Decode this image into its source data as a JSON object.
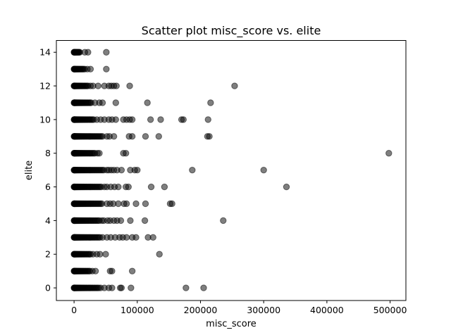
{
  "chart_data": {
    "type": "scatter",
    "title": "Scatter plot misc_score vs. elite",
    "xlabel": "misc_score",
    "ylabel": "elite",
    "xlim": [
      -28000,
      525000
    ],
    "ylim": [
      -0.75,
      14.7
    ],
    "xticks": [
      0,
      100000,
      200000,
      300000,
      400000,
      500000
    ],
    "xtick_labels": [
      "0",
      "100000",
      "200000",
      "300000",
      "400000",
      "500000"
    ],
    "yticks": [
      0,
      2,
      4,
      6,
      8,
      10,
      12,
      14
    ],
    "ytick_labels": [
      "0",
      "2",
      "4",
      "6",
      "8",
      "10",
      "12",
      "14"
    ],
    "grid": false,
    "marker_color": "#000000",
    "marker_alpha": 0.5,
    "dense_rows": [
      {
        "y": 0,
        "x_max": 39000
      },
      {
        "y": 1,
        "x_max": 25000
      },
      {
        "y": 2,
        "x_max": 26000
      },
      {
        "y": 3,
        "x_max": 41000
      },
      {
        "y": 4,
        "x_max": 40000
      },
      {
        "y": 5,
        "x_max": 44000
      },
      {
        "y": 6,
        "x_max": 43000
      },
      {
        "y": 7,
        "x_max": 47000
      },
      {
        "y": 8,
        "x_max": 33000
      },
      {
        "y": 9,
        "x_max": 45000
      },
      {
        "y": 10,
        "x_max": 31000
      },
      {
        "y": 11,
        "x_max": 27000
      },
      {
        "y": 12,
        "x_max": 22000
      },
      {
        "y": 13,
        "x_max": 15000
      },
      {
        "y": 14,
        "x_max": 9000
      }
    ],
    "points": [
      {
        "x": 17000,
        "y": 14
      },
      {
        "x": 22000,
        "y": 14
      },
      {
        "x": 51000,
        "y": 14
      },
      {
        "x": 17000,
        "y": 13
      },
      {
        "x": 21000,
        "y": 13
      },
      {
        "x": 26000,
        "y": 13
      },
      {
        "x": 51000,
        "y": 13
      },
      {
        "x": 26000,
        "y": 12
      },
      {
        "x": 30000,
        "y": 12
      },
      {
        "x": 38000,
        "y": 12
      },
      {
        "x": 48000,
        "y": 12
      },
      {
        "x": 55000,
        "y": 12
      },
      {
        "x": 59000,
        "y": 12
      },
      {
        "x": 63000,
        "y": 12
      },
      {
        "x": 67000,
        "y": 12
      },
      {
        "x": 88000,
        "y": 12
      },
      {
        "x": 254000,
        "y": 12
      },
      {
        "x": 33000,
        "y": 11
      },
      {
        "x": 40000,
        "y": 11
      },
      {
        "x": 45000,
        "y": 11
      },
      {
        "x": 66000,
        "y": 11
      },
      {
        "x": 116000,
        "y": 11
      },
      {
        "x": 216000,
        "y": 11
      },
      {
        "x": 36000,
        "y": 10
      },
      {
        "x": 42000,
        "y": 10
      },
      {
        "x": 48000,
        "y": 10
      },
      {
        "x": 55000,
        "y": 10
      },
      {
        "x": 60000,
        "y": 10
      },
      {
        "x": 66000,
        "y": 10
      },
      {
        "x": 78000,
        "y": 10
      },
      {
        "x": 83000,
        "y": 10
      },
      {
        "x": 88000,
        "y": 10
      },
      {
        "x": 92000,
        "y": 10
      },
      {
        "x": 121000,
        "y": 10
      },
      {
        "x": 137000,
        "y": 10
      },
      {
        "x": 170000,
        "y": 10
      },
      {
        "x": 173000,
        "y": 10
      },
      {
        "x": 212000,
        "y": 10
      },
      {
        "x": 52000,
        "y": 9
      },
      {
        "x": 56000,
        "y": 9
      },
      {
        "x": 63000,
        "y": 9
      },
      {
        "x": 87000,
        "y": 9
      },
      {
        "x": 92000,
        "y": 9
      },
      {
        "x": 113000,
        "y": 9
      },
      {
        "x": 134000,
        "y": 9
      },
      {
        "x": 211000,
        "y": 9
      },
      {
        "x": 214000,
        "y": 9
      },
      {
        "x": 37000,
        "y": 8
      },
      {
        "x": 40000,
        "y": 8
      },
      {
        "x": 78000,
        "y": 8
      },
      {
        "x": 82000,
        "y": 8
      },
      {
        "x": 498000,
        "y": 8
      },
      {
        "x": 52000,
        "y": 7
      },
      {
        "x": 55000,
        "y": 7
      },
      {
        "x": 59000,
        "y": 7
      },
      {
        "x": 63000,
        "y": 7
      },
      {
        "x": 68000,
        "y": 7
      },
      {
        "x": 75000,
        "y": 7
      },
      {
        "x": 89000,
        "y": 7
      },
      {
        "x": 96000,
        "y": 7
      },
      {
        "x": 100000,
        "y": 7
      },
      {
        "x": 187000,
        "y": 7
      },
      {
        "x": 300000,
        "y": 7
      },
      {
        "x": 48000,
        "y": 6
      },
      {
        "x": 52000,
        "y": 6
      },
      {
        "x": 58000,
        "y": 6
      },
      {
        "x": 64000,
        "y": 6
      },
      {
        "x": 70000,
        "y": 6
      },
      {
        "x": 82000,
        "y": 6
      },
      {
        "x": 86000,
        "y": 6
      },
      {
        "x": 122000,
        "y": 6
      },
      {
        "x": 143000,
        "y": 6
      },
      {
        "x": 336000,
        "y": 6
      },
      {
        "x": 52000,
        "y": 5
      },
      {
        "x": 57000,
        "y": 5
      },
      {
        "x": 62000,
        "y": 5
      },
      {
        "x": 70000,
        "y": 5
      },
      {
        "x": 79000,
        "y": 5
      },
      {
        "x": 83000,
        "y": 5
      },
      {
        "x": 98000,
        "y": 5
      },
      {
        "x": 113000,
        "y": 5
      },
      {
        "x": 152000,
        "y": 5
      },
      {
        "x": 155000,
        "y": 5
      },
      {
        "x": 44000,
        "y": 4
      },
      {
        "x": 47000,
        "y": 4
      },
      {
        "x": 53000,
        "y": 4
      },
      {
        "x": 57000,
        "y": 4
      },
      {
        "x": 63000,
        "y": 4
      },
      {
        "x": 68000,
        "y": 4
      },
      {
        "x": 74000,
        "y": 4
      },
      {
        "x": 89000,
        "y": 4
      },
      {
        "x": 112000,
        "y": 4
      },
      {
        "x": 236000,
        "y": 4
      },
      {
        "x": 45000,
        "y": 3
      },
      {
        "x": 52000,
        "y": 3
      },
      {
        "x": 58000,
        "y": 3
      },
      {
        "x": 65000,
        "y": 3
      },
      {
        "x": 72000,
        "y": 3
      },
      {
        "x": 77000,
        "y": 3
      },
      {
        "x": 83000,
        "y": 3
      },
      {
        "x": 92000,
        "y": 3
      },
      {
        "x": 98000,
        "y": 3
      },
      {
        "x": 117000,
        "y": 3
      },
      {
        "x": 125000,
        "y": 3
      },
      {
        "x": 30000,
        "y": 2
      },
      {
        "x": 36000,
        "y": 2
      },
      {
        "x": 41000,
        "y": 2
      },
      {
        "x": 50000,
        "y": 2
      },
      {
        "x": 135000,
        "y": 2
      },
      {
        "x": 29000,
        "y": 1
      },
      {
        "x": 34000,
        "y": 1
      },
      {
        "x": 57000,
        "y": 1
      },
      {
        "x": 60000,
        "y": 1
      },
      {
        "x": 92000,
        "y": 1
      },
      {
        "x": 42000,
        "y": 0
      },
      {
        "x": 48000,
        "y": 0
      },
      {
        "x": 55000,
        "y": 0
      },
      {
        "x": 60000,
        "y": 0
      },
      {
        "x": 73000,
        "y": 0
      },
      {
        "x": 75000,
        "y": 0
      },
      {
        "x": 90000,
        "y": 0
      },
      {
        "x": 177000,
        "y": 0
      },
      {
        "x": 205000,
        "y": 0
      }
    ]
  }
}
